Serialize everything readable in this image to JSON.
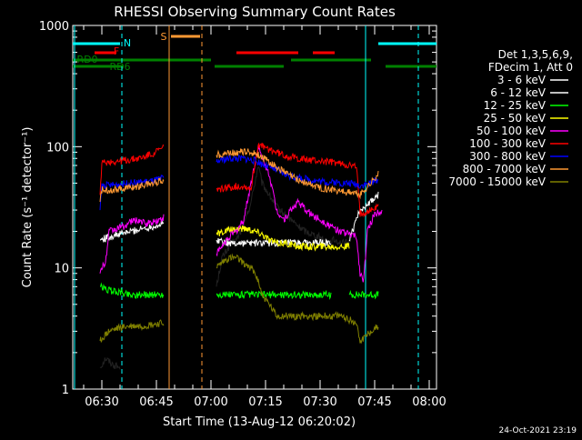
{
  "chart_data": {
    "type": "line",
    "title": "RHESSI Observing Summary Count Rates",
    "xlabel": "Start Time (13-Aug-12 06:20:02)",
    "ylabel": "Count Rate (s⁻¹ detector⁻¹)",
    "yscale": "log",
    "ylim": [
      1,
      1000
    ],
    "xlim_minutes": [
      20,
      100
    ],
    "x_ticks": [
      {
        "t": 30,
        "label": "06:30"
      },
      {
        "t": 45,
        "label": "06:45"
      },
      {
        "t": 60,
        "label": "07:00"
      },
      {
        "t": 75,
        "label": "07:15"
      },
      {
        "t": 90,
        "label": "07:30"
      },
      {
        "t": 105,
        "label": "07:45"
      },
      {
        "t": 120,
        "label": "08:00"
      }
    ],
    "y_ticks": [
      {
        "v": 1,
        "label": "1"
      },
      {
        "v": 10,
        "label": "10"
      },
      {
        "v": 100,
        "label": "100"
      },
      {
        "v": 1000,
        "label": "1000"
      }
    ],
    "legend_header": [
      "Det 1,3,5,6,9,",
      "FDecim 1, Att 0"
    ],
    "legend_position": "right",
    "series": [
      {
        "name": "3 - 6 keV",
        "color": "#000000",
        "values": [
          [
            29.5,
            1.5
          ],
          [
            31,
            1.8
          ],
          [
            33,
            1.6
          ],
          [
            35,
            1.5
          ],
          [
            61.5,
            7
          ],
          [
            63,
            12
          ],
          [
            65,
            15
          ],
          [
            67,
            17
          ],
          [
            69,
            22
          ],
          [
            71,
            35
          ],
          [
            73,
            70
          ],
          [
            74,
            50
          ],
          [
            76,
            40
          ],
          [
            78,
            32
          ],
          [
            80,
            28
          ],
          [
            82,
            25
          ],
          [
            84,
            22
          ],
          [
            86,
            20
          ],
          [
            88,
            19
          ],
          [
            90,
            18
          ],
          [
            92,
            16
          ],
          [
            94,
            17
          ],
          [
            96,
            16
          ],
          [
            98,
            16
          ]
        ]
      },
      {
        "name": "6 - 12 keV",
        "color": "#ffffff",
        "values": [
          [
            29.5,
            17
          ],
          [
            32,
            18
          ],
          [
            35,
            19
          ],
          [
            38,
            20
          ],
          [
            41,
            21
          ],
          [
            44,
            22
          ],
          [
            47,
            23
          ],
          [
            61.5,
            17
          ],
          [
            65,
            16
          ],
          [
            69,
            16
          ],
          [
            73,
            16
          ],
          [
            77,
            16
          ],
          [
            81,
            16
          ],
          [
            85,
            16
          ],
          [
            89,
            16
          ],
          [
            93,
            16
          ],
          [
            98,
            17
          ],
          [
            101,
            30
          ],
          [
            104,
            35
          ],
          [
            106,
            40
          ]
        ]
      },
      {
        "name": "12 - 25 keV",
        "color": "#00ff00",
        "values": [
          [
            29.5,
            7
          ],
          [
            32,
            6.5
          ],
          [
            35,
            6.3
          ],
          [
            38,
            6
          ],
          [
            41,
            6
          ],
          [
            44,
            6
          ],
          [
            47,
            6
          ],
          [
            61.5,
            6
          ],
          [
            65,
            6
          ],
          [
            69,
            6
          ],
          [
            73,
            6
          ],
          [
            77,
            6
          ],
          [
            81,
            6
          ],
          [
            85,
            6
          ],
          [
            89,
            6
          ],
          [
            93,
            6
          ],
          [
            98,
            6
          ],
          [
            101,
            6
          ],
          [
            104,
            6
          ],
          [
            106,
            6
          ]
        ]
      },
      {
        "name": "25 - 50 keV",
        "color": "#ffff00",
        "values": [
          [
            61.5,
            19
          ],
          [
            64,
            20
          ],
          [
            67,
            21
          ],
          [
            70,
            21
          ],
          [
            72,
            20
          ],
          [
            74,
            19
          ],
          [
            76,
            17
          ],
          [
            78,
            16
          ],
          [
            80,
            16
          ],
          [
            84,
            15
          ],
          [
            88,
            15
          ],
          [
            92,
            15
          ],
          [
            96,
            15
          ],
          [
            98,
            15
          ]
        ]
      },
      {
        "name": "50 - 100 keV",
        "color": "#ff00ff",
        "values": [
          [
            29.5,
            9
          ],
          [
            30,
            10
          ],
          [
            31,
            11
          ],
          [
            32,
            20
          ],
          [
            34,
            21
          ],
          [
            36,
            22
          ],
          [
            38,
            24
          ],
          [
            40,
            25
          ],
          [
            42,
            23
          ],
          [
            44,
            24
          ],
          [
            46,
            25
          ],
          [
            47,
            26
          ],
          [
            61.5,
            13
          ],
          [
            63,
            15
          ],
          [
            65,
            18
          ],
          [
            67,
            20
          ],
          [
            69,
            25
          ],
          [
            71,
            50
          ],
          [
            73,
            100
          ],
          [
            74,
            80
          ],
          [
            76,
            60
          ],
          [
            78,
            30
          ],
          [
            80,
            25
          ],
          [
            82,
            30
          ],
          [
            84,
            35
          ],
          [
            86,
            30
          ],
          [
            88,
            27
          ],
          [
            90,
            25
          ],
          [
            92,
            23
          ],
          [
            94,
            21
          ],
          [
            96,
            20
          ],
          [
            98,
            19
          ],
          [
            100,
            18
          ],
          [
            101,
            9
          ],
          [
            102,
            8
          ],
          [
            103,
            20
          ],
          [
            105,
            28
          ],
          [
            107,
            30
          ]
        ]
      },
      {
        "name": "100 - 300 keV",
        "color": "#ff0000",
        "values": [
          [
            29.5,
            40
          ],
          [
            30,
            73
          ],
          [
            32,
            75
          ],
          [
            35,
            76
          ],
          [
            38,
            78
          ],
          [
            41,
            81
          ],
          [
            44,
            88
          ],
          [
            47,
            98
          ],
          [
            61.5,
            45
          ],
          [
            63,
            45
          ],
          [
            65,
            46
          ],
          [
            67,
            47
          ],
          [
            69,
            47
          ],
          [
            71,
            45
          ],
          [
            73,
            105
          ],
          [
            74,
            100
          ],
          [
            76,
            95
          ],
          [
            78,
            90
          ],
          [
            80,
            85
          ],
          [
            82,
            82
          ],
          [
            84,
            80
          ],
          [
            86,
            78
          ],
          [
            88,
            77
          ],
          [
            90,
            76
          ],
          [
            92,
            75
          ],
          [
            94,
            74
          ],
          [
            96,
            72
          ],
          [
            98,
            70
          ],
          [
            100,
            68
          ],
          [
            101,
            28
          ],
          [
            104,
            30
          ],
          [
            106,
            32
          ]
        ]
      },
      {
        "name": "300 - 800 keV",
        "color": "#0000ff",
        "values": [
          [
            29.5,
            30
          ],
          [
            30,
            48
          ],
          [
            32,
            48
          ],
          [
            35,
            49
          ],
          [
            38,
            50
          ],
          [
            41,
            51
          ],
          [
            44,
            52
          ],
          [
            47,
            55
          ],
          [
            61.5,
            75
          ],
          [
            63,
            78
          ],
          [
            65,
            80
          ],
          [
            67,
            80
          ],
          [
            69,
            80
          ],
          [
            71,
            78
          ],
          [
            73,
            75
          ],
          [
            74,
            72
          ],
          [
            76,
            68
          ],
          [
            78,
            64
          ],
          [
            80,
            60
          ],
          [
            82,
            57
          ],
          [
            84,
            55
          ],
          [
            86,
            54
          ],
          [
            88,
            53
          ],
          [
            90,
            52
          ],
          [
            92,
            51
          ],
          [
            94,
            51
          ],
          [
            96,
            50
          ],
          [
            98,
            50
          ],
          [
            100,
            49
          ],
          [
            101,
            48
          ],
          [
            104,
            50
          ],
          [
            106,
            54
          ]
        ]
      },
      {
        "name": "800 - 7000 keV",
        "color": "#ff9933",
        "values": [
          [
            29.5,
            35
          ],
          [
            30,
            44
          ],
          [
            32,
            44
          ],
          [
            35,
            45
          ],
          [
            38,
            46
          ],
          [
            41,
            48
          ],
          [
            44,
            50
          ],
          [
            47,
            53
          ],
          [
            61.5,
            85
          ],
          [
            63,
            87
          ],
          [
            65,
            89
          ],
          [
            67,
            90
          ],
          [
            69,
            91
          ],
          [
            71,
            90
          ],
          [
            73,
            86
          ],
          [
            74,
            82
          ],
          [
            76,
            75
          ],
          [
            78,
            68
          ],
          [
            80,
            62
          ],
          [
            82,
            57
          ],
          [
            84,
            53
          ],
          [
            86,
            50
          ],
          [
            88,
            48
          ],
          [
            90,
            46
          ],
          [
            92,
            45
          ],
          [
            94,
            44
          ],
          [
            96,
            43
          ],
          [
            98,
            42
          ],
          [
            100,
            41
          ],
          [
            101,
            40
          ],
          [
            104,
            50
          ],
          [
            106,
            60
          ]
        ]
      },
      {
        "name": "7000 - 15000 keV",
        "color": "#808000",
        "values": [
          [
            29.5,
            2.5
          ],
          [
            32,
            3
          ],
          [
            35,
            3.2
          ],
          [
            38,
            3.3
          ],
          [
            41,
            3.3
          ],
          [
            44,
            3.4
          ],
          [
            47,
            3.5
          ],
          [
            61.5,
            10
          ],
          [
            63,
            11
          ],
          [
            65,
            12
          ],
          [
            67,
            12
          ],
          [
            69,
            11
          ],
          [
            71,
            10
          ],
          [
            73,
            8
          ],
          [
            74,
            6
          ],
          [
            76,
            5
          ],
          [
            78,
            4
          ],
          [
            80,
            4
          ],
          [
            84,
            4
          ],
          [
            88,
            4
          ],
          [
            92,
            4
          ],
          [
            96,
            4
          ],
          [
            100,
            3.5
          ],
          [
            101,
            2.5
          ],
          [
            104,
            3
          ],
          [
            106,
            3.3
          ]
        ]
      }
    ],
    "annotations": [
      {
        "label": "N",
        "color": "#00ffff"
      },
      {
        "label": "F",
        "color": "#ff0000"
      },
      {
        "label": "S",
        "color": "#ff9933"
      },
      {
        "label": "RD0",
        "color": "#008000"
      },
      {
        "label": "RD6",
        "color": "#008000"
      }
    ],
    "footer_date": "24-Oct-2021 23:19"
  }
}
